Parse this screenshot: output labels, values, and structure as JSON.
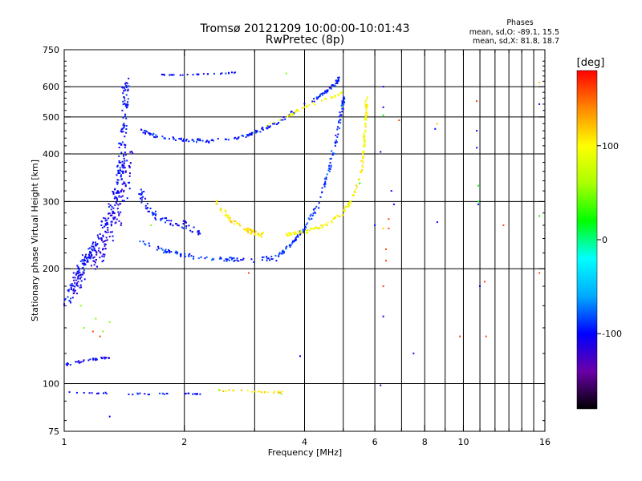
{
  "chart_data": {
    "type": "scatter",
    "title_line1": "Tromsø 20121209 10:00:00-10:01:43",
    "title_line2": "RwPretec (8p)",
    "xlabel": "Frequency [MHz]",
    "ylabel": "Stationary phase Virtual Height [km]",
    "x_scale": "log",
    "y_scale": "log",
    "xlim": [
      1,
      16
    ],
    "ylim": [
      75,
      750
    ],
    "x_ticks": [
      1,
      2,
      4,
      6,
      8,
      10,
      16
    ],
    "x_tick_labels": [
      "1",
      "2",
      "4",
      "6",
      "8",
      "10",
      "16"
    ],
    "y_ticks": [
      75,
      100,
      200,
      300,
      400,
      500,
      600,
      750
    ],
    "y_tick_labels": [
      "75",
      "100",
      "200",
      "300",
      "400",
      "500",
      "600",
      "750"
    ],
    "grid": true,
    "phase_info": {
      "heading": "Phases",
      "line_o": "mean, sd,O: -89.1, 15.5",
      "line_x": "mean, sd,X:  81.8, 18.7"
    },
    "colorbar": {
      "label": "[deg]",
      "min": -180,
      "max": 180,
      "ticks": [
        100,
        0,
        -100
      ],
      "tick_labels": [
        "100",
        "0",
        "-100"
      ],
      "colormap": [
        "#000000",
        "#6a00a8",
        "#0000ff",
        "#00aaff",
        "#00ffff",
        "#00ff00",
        "#aaff00",
        "#ffff00",
        "#ff8800",
        "#ff0000"
      ]
    },
    "series": [
      {
        "phase": -100,
        "kind": "curve",
        "pts": [
          [
            1.0,
            160
          ],
          [
            1.05,
            180
          ],
          [
            1.1,
            200
          ],
          [
            1.15,
            215
          ],
          [
            1.2,
            230
          ],
          [
            1.25,
            250
          ],
          [
            1.3,
            275
          ],
          [
            1.35,
            310
          ],
          [
            1.38,
            360
          ],
          [
            1.4,
            420
          ],
          [
            1.42,
            500
          ],
          [
            1.43,
            560
          ],
          [
            1.42,
            620
          ]
        ],
        "spread": 0.07,
        "n": 260
      },
      {
        "phase": -110,
        "kind": "curve",
        "pts": [
          [
            1.02,
            175
          ],
          [
            1.15,
            200
          ],
          [
            1.3,
            240
          ],
          [
            1.4,
            300
          ],
          [
            1.45,
            400
          ]
        ],
        "spread": 0.1,
        "n": 150
      },
      {
        "phase": -90,
        "kind": "curve",
        "pts": [
          [
            1.55,
            235
          ],
          [
            1.8,
            222
          ],
          [
            2.1,
            215
          ],
          [
            2.5,
            212
          ],
          [
            3.0,
            210
          ],
          [
            3.4,
            215
          ],
          [
            3.7,
            232
          ],
          [
            4.0,
            255
          ],
          [
            4.3,
            290
          ],
          [
            4.6,
            360
          ],
          [
            4.8,
            440
          ],
          [
            4.95,
            520
          ],
          [
            5.05,
            570
          ]
        ],
        "spread": 0.025,
        "n": 220
      },
      {
        "phase": -95,
        "kind": "curve",
        "pts": [
          [
            1.55,
            460
          ],
          [
            1.7,
            445
          ],
          [
            2.0,
            435
          ],
          [
            2.3,
            432
          ],
          [
            2.7,
            440
          ],
          [
            3.0,
            455
          ],
          [
            3.4,
            480
          ],
          [
            3.8,
            520
          ],
          [
            4.3,
            560
          ],
          [
            4.7,
            600
          ],
          [
            4.95,
            640
          ]
        ],
        "spread": 0.02,
        "n": 170
      },
      {
        "phase": -100,
        "kind": "curve",
        "pts": [
          [
            1.55,
            320
          ],
          [
            1.6,
            290
          ],
          [
            1.75,
            270
          ],
          [
            2.0,
            260
          ],
          [
            2.2,
            245
          ]
        ],
        "spread": 0.05,
        "n": 70
      },
      {
        "phase": -105,
        "kind": "curve",
        "pts": [
          [
            1.0,
            112
          ],
          [
            1.1,
            114
          ],
          [
            1.2,
            116
          ],
          [
            1.3,
            117
          ]
        ],
        "spread": 0.015,
        "n": 35
      },
      {
        "phase": -100,
        "kind": "curve",
        "pts": [
          [
            1.0,
            95
          ],
          [
            1.5,
            94
          ],
          [
            2.0,
            94
          ],
          [
            2.2,
            94
          ]
        ],
        "spread": 0.008,
        "n": 35
      },
      {
        "phase": -100,
        "kind": "curve",
        "pts": [
          [
            1.7,
            645
          ],
          [
            2.1,
            645
          ],
          [
            2.5,
            650
          ],
          [
            2.7,
            655
          ]
        ],
        "spread": 0.006,
        "n": 28
      },
      {
        "phase": 110,
        "kind": "curve",
        "pts": [
          [
            2.4,
            300
          ],
          [
            2.6,
            270
          ],
          [
            2.8,
            255
          ],
          [
            3.0,
            248
          ],
          [
            3.2,
            245
          ]
        ],
        "spread": 0.025,
        "n": 70
      },
      {
        "phase": 100,
        "kind": "curve",
        "pts": [
          [
            3.6,
            245
          ],
          [
            4.0,
            250
          ],
          [
            4.5,
            260
          ],
          [
            5.0,
            280
          ],
          [
            5.3,
            310
          ],
          [
            5.55,
            360
          ],
          [
            5.65,
            430
          ],
          [
            5.7,
            500
          ],
          [
            5.72,
            560
          ]
        ],
        "spread": 0.02,
        "n": 160
      },
      {
        "phase": 95,
        "kind": "curve",
        "pts": [
          [
            3.2,
            470
          ],
          [
            3.6,
            500
          ],
          [
            4.0,
            530
          ],
          [
            4.5,
            555
          ],
          [
            5.0,
            580
          ]
        ],
        "spread": 0.015,
        "n": 40
      },
      {
        "phase": 110,
        "kind": "curve",
        "pts": [
          [
            2.4,
            96
          ],
          [
            2.8,
            96
          ],
          [
            3.2,
            95
          ],
          [
            3.6,
            95
          ]
        ],
        "spread": 0.01,
        "n": 25
      },
      {
        "phase": 50,
        "kind": "points",
        "pts": [
          [
            1.1,
            160
          ],
          [
            1.2,
            148
          ],
          [
            1.12,
            140
          ],
          [
            1.25,
            137
          ],
          [
            1.3,
            145
          ],
          [
            1.65,
            260
          ],
          [
            2.45,
            96
          ],
          [
            3.5,
            94
          ],
          [
            3.6,
            650
          ]
        ]
      },
      {
        "phase": 160,
        "kind": "points",
        "pts": [
          [
            1.18,
            137
          ],
          [
            1.23,
            133
          ],
          [
            2.9,
            195
          ],
          [
            6.4,
            210
          ],
          [
            6.4,
            225
          ],
          [
            6.3,
            180
          ],
          [
            6.9,
            490
          ],
          [
            6.5,
            255
          ],
          [
            6.5,
            270
          ],
          [
            10.8,
            550
          ],
          [
            12.6,
            260
          ],
          [
            11.3,
            185
          ],
          [
            11.4,
            133
          ],
          [
            9.8,
            133
          ],
          [
            15.5,
            195
          ]
        ]
      },
      {
        "phase": -100,
        "kind": "points",
        "pts": [
          [
            6.3,
            530
          ],
          [
            6.2,
            405
          ],
          [
            6.0,
            260
          ],
          [
            6.3,
            600
          ],
          [
            6.6,
            320
          ],
          [
            6.7,
            295
          ],
          [
            8.5,
            465
          ],
          [
            8.6,
            265
          ],
          [
            10.8,
            460
          ],
          [
            10.8,
            415
          ],
          [
            10.9,
            295
          ],
          [
            11.0,
            180
          ],
          [
            7.5,
            120
          ],
          [
            3.9,
            118
          ],
          [
            3.4,
            210
          ],
          [
            6.3,
            150
          ],
          [
            6.2,
            99
          ],
          [
            15.5,
            540
          ],
          [
            1.3,
            82
          ]
        ]
      },
      {
        "phase": 20,
        "kind": "points",
        "pts": [
          [
            6.3,
            505
          ],
          [
            5.5,
            335
          ],
          [
            15.5,
            275
          ],
          [
            10.9,
            330
          ],
          [
            10.9,
            300
          ]
        ]
      },
      {
        "phase": 120,
        "kind": "points",
        "pts": [
          [
            15.5,
            615
          ],
          [
            8.6,
            480
          ],
          [
            6.3,
            255
          ]
        ]
      }
    ]
  }
}
